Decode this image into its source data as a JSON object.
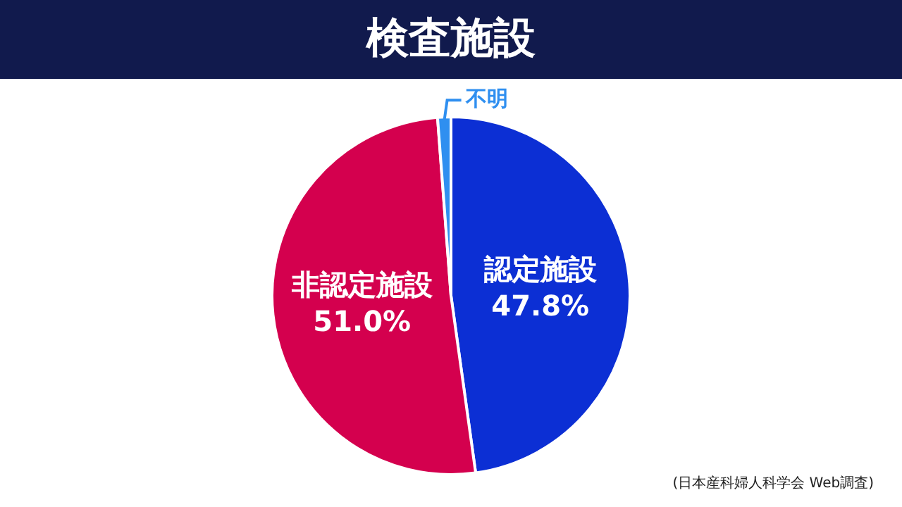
{
  "chart_data": {
    "type": "pie",
    "title": "検査施設",
    "categories": [
      "認定施設",
      "非認定施設",
      "不明"
    ],
    "values": [
      47.8,
      51.0,
      1.2
    ],
    "colors": [
      "#0c2fd4",
      "#d4004e",
      "#2f8ff0"
    ],
    "value_labels": [
      "47.8%",
      "51.0%",
      null
    ],
    "legend": false,
    "annotations": [
      "(日本産科婦人科学会 Web調査)"
    ]
  }
}
